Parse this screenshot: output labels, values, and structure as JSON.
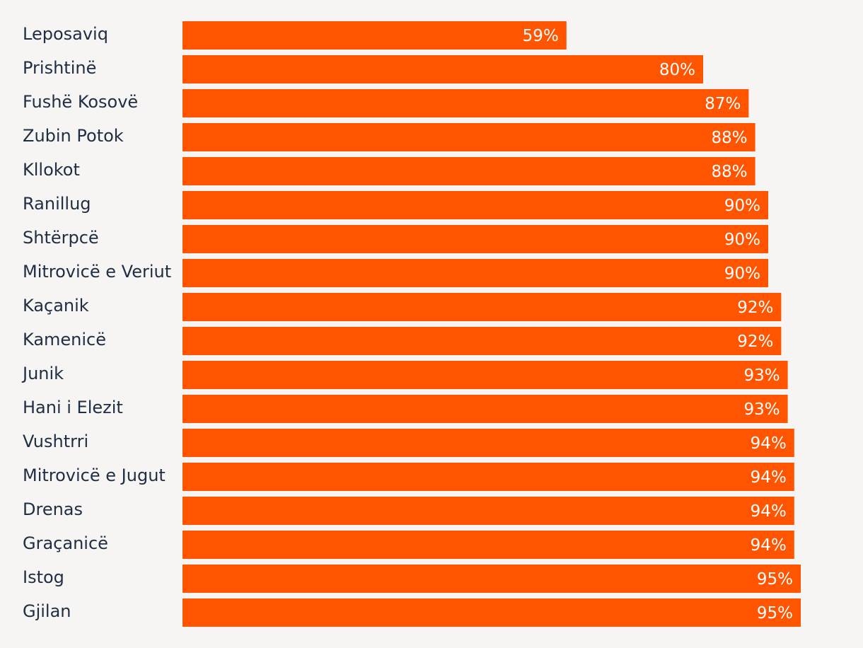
{
  "chart_data": {
    "type": "bar",
    "orientation": "horizontal",
    "categories": [
      "Leposaviq",
      "Prishtinë",
      "Fushë Kosovë",
      "Zubin Potok",
      "Kllokot",
      "Ranillug",
      "Shtërpcë",
      "Mitrovicë e Veriut",
      "Kaçanik",
      "Kamenicë",
      "Junik",
      "Hani i Elezit",
      "Vushtrri",
      "Mitrovicë e Jugut",
      "Drenas",
      "Graçanicë",
      "Istog",
      "Gjilan"
    ],
    "values": [
      59,
      80,
      87,
      88,
      88,
      90,
      90,
      90,
      92,
      92,
      93,
      93,
      94,
      94,
      94,
      94,
      95,
      95
    ],
    "value_labels": [
      "59%",
      "80%",
      "87%",
      "88%",
      "88%",
      "90%",
      "90%",
      "90%",
      "92%",
      "92%",
      "93%",
      "93%",
      "94%",
      "94%",
      "94%",
      "94%",
      "95%",
      "95%"
    ],
    "title": "",
    "xlabel": "",
    "ylabel": "",
    "xlim": [
      0,
      100
    ],
    "grid": false,
    "legend": "none",
    "colors": {
      "bar": "#ff5500",
      "background": "#f7f5f3",
      "label_text": "#1f2e44",
      "value_text": "#ffffff"
    }
  }
}
